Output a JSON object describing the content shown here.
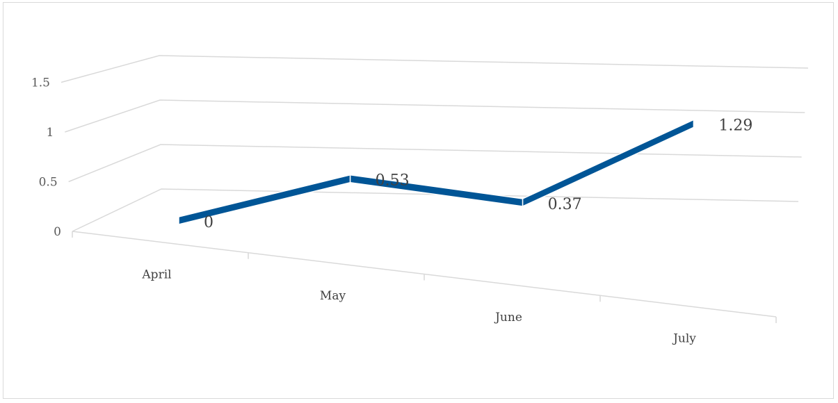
{
  "chart_data": {
    "type": "line",
    "title": "",
    "xlabel": "",
    "ylabel": "",
    "categories": [
      "April",
      "May",
      "June",
      "July"
    ],
    "series": [
      {
        "values": [
          0,
          0.53,
          0.37,
          1.29
        ],
        "color": "#005596"
      }
    ],
    "data_labels": [
      "0",
      "0.53",
      "0.37",
      "1.29"
    ],
    "y_ticks": [
      "0",
      "0.5",
      "1",
      "1.5"
    ],
    "ylim": [
      0,
      1.5
    ],
    "grid": true,
    "legend": "none",
    "style": "3d-line"
  }
}
